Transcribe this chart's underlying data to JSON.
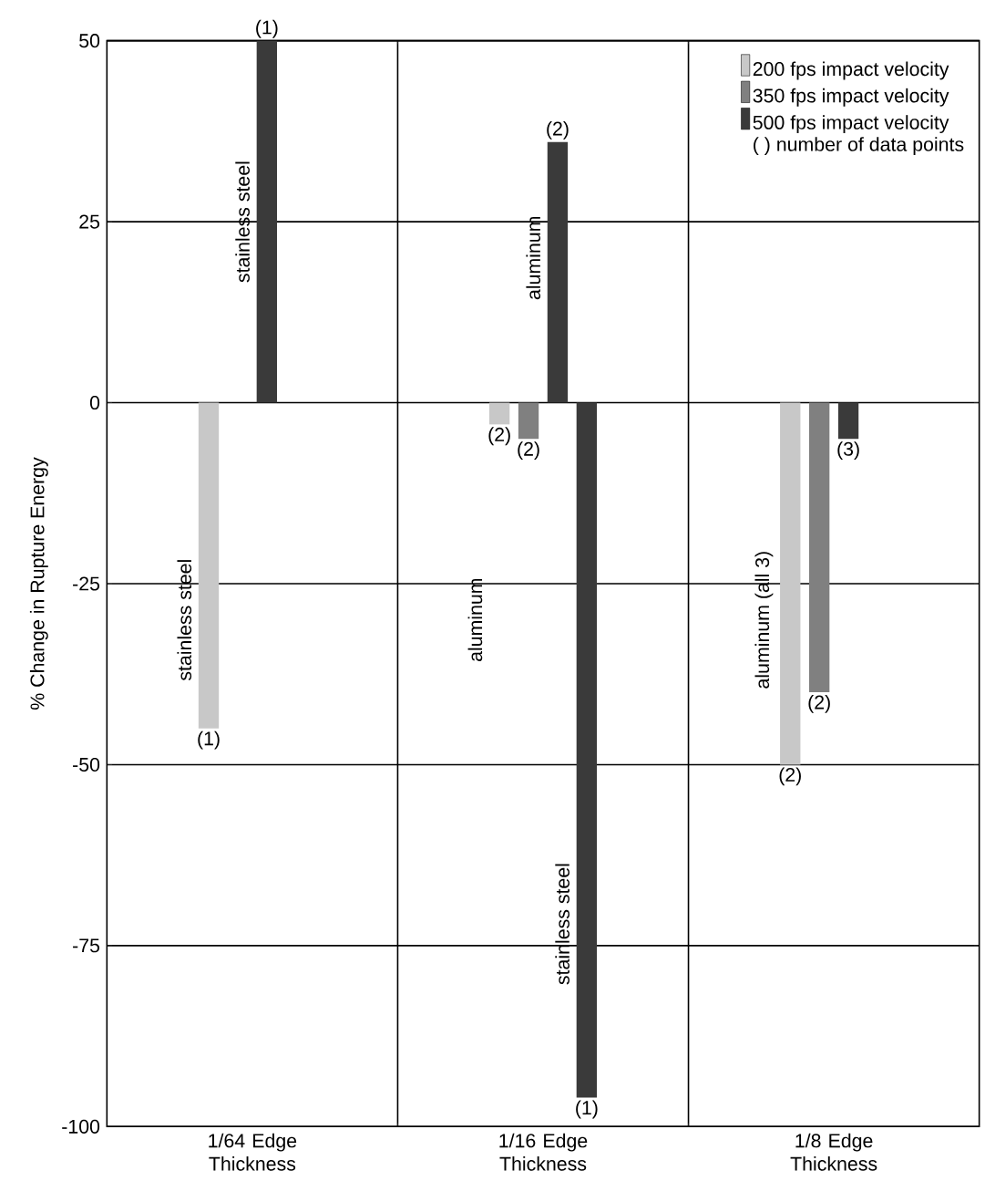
{
  "chart_data": {
    "type": "bar",
    "ylabel": "% Change in Rupture Energy",
    "categories": [
      "1/64 Edge Thickness",
      "1/16 Edge Thickness",
      "1/8 Edge Thickness"
    ],
    "series": [
      {
        "name": "200 fps impact velocity",
        "color": "#c8c8c8",
        "values": [
          -45,
          -3,
          -50
        ]
      },
      {
        "name": "350 fps impact velocity",
        "color": "#808080",
        "values": [
          null,
          -5,
          -40
        ]
      },
      {
        "name": "500 fps impact velocity",
        "color": "#3a3a3a",
        "values": [
          50,
          36,
          -5
        ]
      },
      {
        "color": "#3a3a3a",
        "values": [
          null,
          -96,
          null
        ]
      }
    ],
    "ylim": [
      -100,
      50
    ],
    "yticks": [
      -100,
      -75,
      -50,
      -25,
      0,
      25,
      50
    ],
    "grid": true,
    "legend": "top right",
    "annotations": [
      "( ) number of data points",
      "stainless steel",
      "stainless steel",
      "aluminum",
      "aluminum",
      "stainless steel",
      "aluminum (all 3)",
      "(1)",
      "(2)",
      "(2)",
      "(2)",
      "(2)",
      "(1)",
      "(2)",
      "(3)",
      "(1)"
    ]
  }
}
